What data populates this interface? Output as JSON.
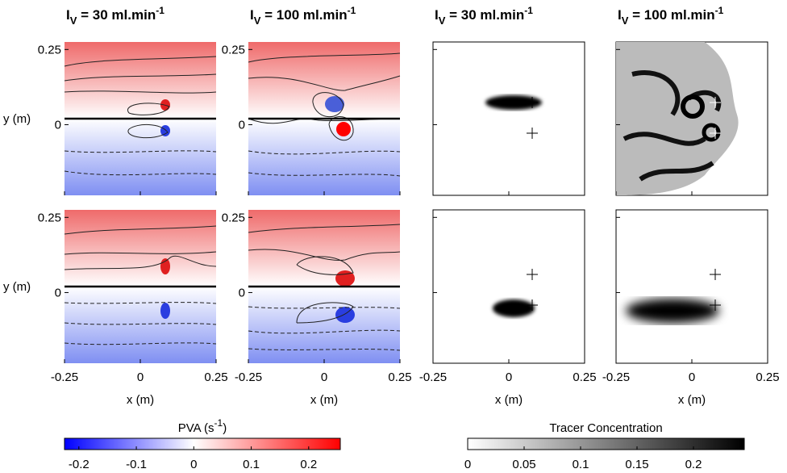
{
  "columns": [
    {
      "title": {
        "symbol": "I",
        "subscript": "V",
        "text": " = 30 ml.min",
        "superscript": "-1"
      }
    },
    {
      "title": {
        "symbol": "I",
        "subscript": "V",
        "text": " = 100 ml.min",
        "superscript": "-1"
      }
    },
    {
      "title": {
        "symbol": "I",
        "subscript": "V",
        "text": " = 30 ml.min",
        "superscript": "-1"
      }
    },
    {
      "title": {
        "symbol": "I",
        "subscript": "V",
        "text": " = 100 ml.min",
        "superscript": "-1"
      }
    }
  ],
  "axes": {
    "xlabel": "x (m)",
    "ylabel": "y (m)",
    "xlim": [
      -0.25,
      0.25
    ],
    "ylim": [
      -0.235,
      0.275
    ],
    "xticks": [
      -0.25,
      0,
      0.25
    ],
    "yticks": [
      0.25,
      0
    ]
  },
  "colorbars": [
    {
      "label": "PVA (s",
      "label_superscript": "-1",
      "label_end": ")",
      "lim": [
        -0.225,
        0.255
      ],
      "ticks": [
        -0.2,
        -0.1,
        0,
        0.1,
        0.2
      ],
      "colors": [
        "#0000ff",
        "#ffffff",
        "#ff0000"
      ]
    },
    {
      "label": "Tracer Concentration",
      "lim": [
        0,
        0.245
      ],
      "ticks": [
        0,
        0.05,
        0.1,
        0.15,
        0.2
      ],
      "colors": [
        "#ffffff",
        "#000000"
      ]
    }
  ]
}
